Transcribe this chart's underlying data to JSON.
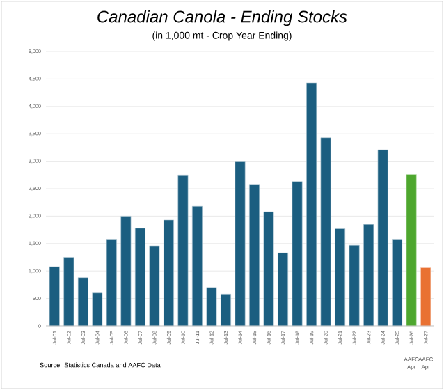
{
  "chart_data": {
    "type": "bar",
    "title": "*Canadian Canola - Ending Stocks*",
    "subtitle": "(in 1,000 mt - Crop Year Ending)",
    "categories": [
      "Jul-01",
      "Jul-02",
      "Jul-03",
      "Jul-04",
      "Jul-05",
      "Jul-06",
      "Jul-07",
      "Jul-08",
      "Jul-09",
      "Jul-10",
      "Jul-11",
      "Jul-12",
      "Jul-13",
      "Jul-14",
      "Jul-15",
      "Jul-16",
      "Jul-17",
      "Jul-18",
      "Jul-19",
      "Jul-20",
      "Jul-21",
      "Jul-22",
      "Jul-23",
      "Jul-24",
      "Jul-25",
      "Jul-26",
      "Jul-27"
    ],
    "values": [
      1080,
      1250,
      880,
      600,
      1580,
      2000,
      1780,
      1460,
      1930,
      2750,
      2180,
      700,
      580,
      3000,
      2580,
      2080,
      1330,
      2630,
      4430,
      3430,
      1770,
      1470,
      1850,
      3210,
      1580,
      2760,
      1060
    ],
    "colors": [
      "#1b5e80",
      "#1b5e80",
      "#1b5e80",
      "#1b5e80",
      "#1b5e80",
      "#1b5e80",
      "#1b5e80",
      "#1b5e80",
      "#1b5e80",
      "#1b5e80",
      "#1b5e80",
      "#1b5e80",
      "#1b5e80",
      "#1b5e80",
      "#1b5e80",
      "#1b5e80",
      "#1b5e80",
      "#1b5e80",
      "#1b5e80",
      "#1b5e80",
      "#1b5e80",
      "#1b5e80",
      "#1b5e80",
      "#1b5e80",
      "#1b5e80",
      "#4ea72e",
      "#e97132"
    ],
    "ylim": [
      0,
      5000
    ],
    "yticks": [
      {
        "value": 0,
        "label": "0"
      },
      {
        "value": 500,
        "label": "500"
      },
      {
        "value": 1000,
        "label": "1,000"
      },
      {
        "value": 1500,
        "label": "1,500"
      },
      {
        "value": 2000,
        "label": "2,000"
      },
      {
        "value": 2500,
        "label": "2,500"
      },
      {
        "value": 3000,
        "label": "3,000"
      },
      {
        "value": 3500,
        "label": "3,500"
      },
      {
        "value": 4000,
        "label": "4,000"
      },
      {
        "value": 4500,
        "label": "4,500"
      },
      {
        "value": 5000,
        "label": "5,000"
      }
    ],
    "grid": "y",
    "annotations": [
      "AAFC Apr",
      "AAFC Apr",
      "Source: Statistics Canada and AAFC Data"
    ]
  }
}
